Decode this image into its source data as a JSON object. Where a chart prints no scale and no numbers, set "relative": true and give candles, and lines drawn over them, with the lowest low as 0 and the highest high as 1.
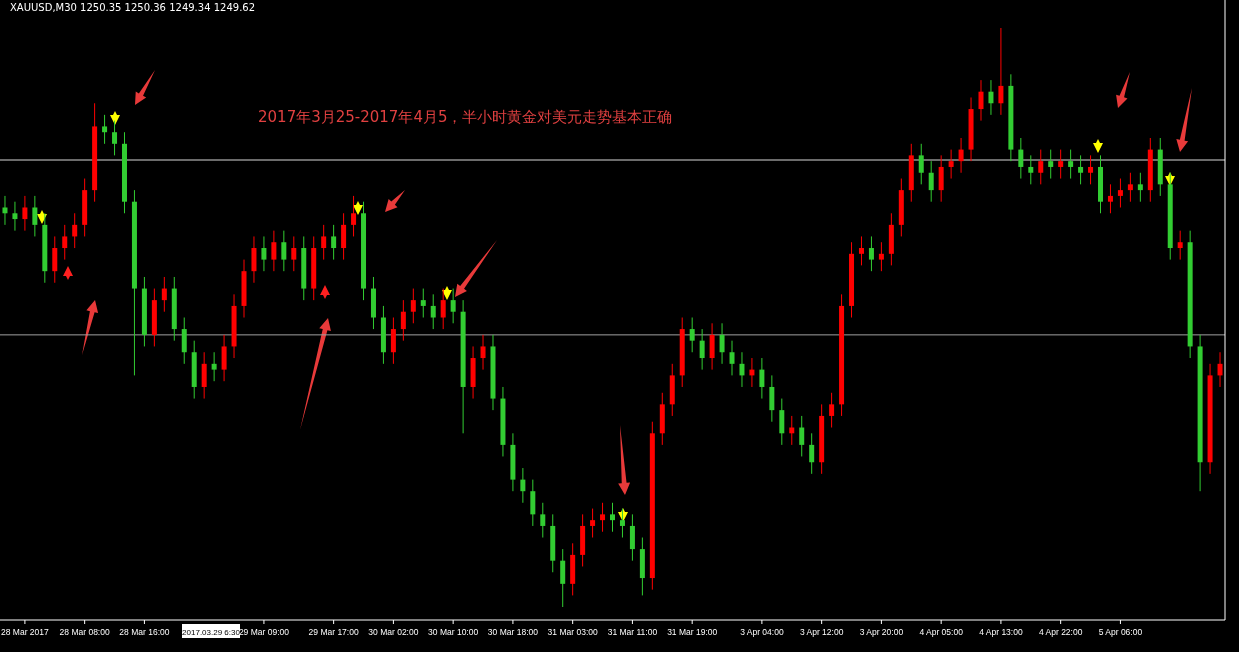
{
  "chart_data": {
    "type": "candlestick",
    "relative": true,
    "title": "2017年3月25-2017年4月5，半小时黄金对美元走势基本正确",
    "annotations": [
      "XAUUSD,M30  1250.35 1250.36 1249.34 1249.62",
      "2017.03.29 6:30"
    ],
    "categories": [
      null,
      null,
      "28 Mar 2017",
      null,
      null,
      null,
      null,
      null,
      "28 Mar 08:00",
      null,
      null,
      null,
      null,
      null,
      "28 Mar 16:00",
      null,
      null,
      null,
      null,
      null,
      null,
      null,
      null,
      null,
      null,
      null,
      "29 Mar 09:00",
      null,
      null,
      null,
      null,
      null,
      null,
      "29 Mar 17:00",
      null,
      null,
      null,
      null,
      null,
      "30 Mar 02:00",
      null,
      null,
      null,
      null,
      null,
      "30 Mar 10:00",
      null,
      null,
      null,
      null,
      null,
      "30 Mar 18:00",
      null,
      null,
      null,
      null,
      null,
      "31 Mar 03:00",
      null,
      null,
      null,
      null,
      null,
      "31 Mar 11:00",
      null,
      null,
      null,
      null,
      null,
      "31 Mar 19:00",
      null,
      null,
      null,
      null,
      null,
      null,
      "3 Apr 04:00",
      null,
      null,
      null,
      null,
      null,
      "3 Apr 12:00",
      null,
      null,
      null,
      null,
      null,
      "3 Apr 20:00",
      null,
      null,
      null,
      null,
      null,
      "4 Apr 05:00",
      null,
      null,
      null,
      null,
      null,
      "4 Apr 13:00",
      null,
      null,
      null,
      null,
      null,
      "4 Apr 22:00",
      null,
      null,
      null,
      null,
      null,
      "5 Apr 06:00",
      null,
      null,
      null,
      null,
      null,
      null,
      null,
      null,
      null,
      null
    ],
    "ohlc": [
      [
        0.69,
        0.71,
        0.66,
        0.68
      ],
      [
        0.68,
        0.7,
        0.65,
        0.67
      ],
      [
        0.67,
        0.71,
        0.65,
        0.69
      ],
      [
        0.69,
        0.71,
        0.64,
        0.66
      ],
      [
        0.66,
        0.68,
        0.56,
        0.58
      ],
      [
        0.58,
        0.64,
        0.56,
        0.62
      ],
      [
        0.62,
        0.66,
        0.6,
        0.64
      ],
      [
        0.64,
        0.68,
        0.62,
        0.66
      ],
      [
        0.66,
        0.74,
        0.64,
        0.72
      ],
      [
        0.72,
        0.87,
        0.7,
        0.83
      ],
      [
        0.83,
        0.85,
        0.8,
        0.82
      ],
      [
        0.82,
        0.84,
        0.78,
        0.8
      ],
      [
        0.8,
        0.82,
        0.68,
        0.7
      ],
      [
        0.7,
        0.72,
        0.4,
        0.55
      ],
      [
        0.55,
        0.57,
        0.45,
        0.47
      ],
      [
        0.47,
        0.55,
        0.45,
        0.53
      ],
      [
        0.53,
        0.57,
        0.51,
        0.55
      ],
      [
        0.55,
        0.57,
        0.46,
        0.48
      ],
      [
        0.48,
        0.5,
        0.42,
        0.44
      ],
      [
        0.44,
        0.46,
        0.36,
        0.38
      ],
      [
        0.38,
        0.44,
        0.36,
        0.42
      ],
      [
        0.42,
        0.44,
        0.39,
        0.41
      ],
      [
        0.41,
        0.47,
        0.39,
        0.45
      ],
      [
        0.45,
        0.54,
        0.43,
        0.52
      ],
      [
        0.52,
        0.6,
        0.5,
        0.58
      ],
      [
        0.58,
        0.64,
        0.56,
        0.62
      ],
      [
        0.62,
        0.64,
        0.58,
        0.6
      ],
      [
        0.6,
        0.65,
        0.58,
        0.63
      ],
      [
        0.63,
        0.65,
        0.58,
        0.6
      ],
      [
        0.6,
        0.64,
        0.58,
        0.62
      ],
      [
        0.62,
        0.64,
        0.53,
        0.55
      ],
      [
        0.55,
        0.64,
        0.53,
        0.62
      ],
      [
        0.62,
        0.66,
        0.6,
        0.64
      ],
      [
        0.64,
        0.66,
        0.6,
        0.62
      ],
      [
        0.62,
        0.68,
        0.6,
        0.66
      ],
      [
        0.66,
        0.71,
        0.64,
        0.68
      ],
      [
        0.68,
        0.7,
        0.53,
        0.55
      ],
      [
        0.55,
        0.57,
        0.48,
        0.5
      ],
      [
        0.5,
        0.52,
        0.42,
        0.44
      ],
      [
        0.44,
        0.5,
        0.42,
        0.48
      ],
      [
        0.48,
        0.53,
        0.46,
        0.51
      ],
      [
        0.51,
        0.55,
        0.49,
        0.53
      ],
      [
        0.53,
        0.55,
        0.5,
        0.52
      ],
      [
        0.52,
        0.54,
        0.48,
        0.5
      ],
      [
        0.5,
        0.55,
        0.48,
        0.53
      ],
      [
        0.53,
        0.55,
        0.49,
        0.51
      ],
      [
        0.51,
        0.53,
        0.3,
        0.38
      ],
      [
        0.38,
        0.45,
        0.36,
        0.43
      ],
      [
        0.43,
        0.47,
        0.41,
        0.45
      ],
      [
        0.45,
        0.47,
        0.34,
        0.36
      ],
      [
        0.36,
        0.38,
        0.26,
        0.28
      ],
      [
        0.28,
        0.3,
        0.2,
        0.22
      ],
      [
        0.22,
        0.24,
        0.18,
        0.2
      ],
      [
        0.2,
        0.22,
        0.14,
        0.16
      ],
      [
        0.16,
        0.18,
        0.12,
        0.14
      ],
      [
        0.14,
        0.16,
        0.06,
        0.08
      ],
      [
        0.08,
        0.1,
        0,
        0.04
      ],
      [
        0.04,
        0.11,
        0.02,
        0.09
      ],
      [
        0.09,
        0.16,
        0.07,
        0.14
      ],
      [
        0.14,
        0.17,
        0.12,
        0.15
      ],
      [
        0.15,
        0.18,
        0.13,
        0.16
      ],
      [
        0.16,
        0.18,
        0.13,
        0.15
      ],
      [
        0.15,
        0.17,
        0.12,
        0.14
      ],
      [
        0.14,
        0.16,
        0.08,
        0.1
      ],
      [
        0.1,
        0.12,
        0.02,
        0.05
      ],
      [
        0.05,
        0.32,
        0.03,
        0.3
      ],
      [
        0.3,
        0.37,
        0.28,
        0.35
      ],
      [
        0.35,
        0.42,
        0.33,
        0.4
      ],
      [
        0.4,
        0.5,
        0.38,
        0.48
      ],
      [
        0.48,
        0.5,
        0.44,
        0.46
      ],
      [
        0.46,
        0.48,
        0.41,
        0.43
      ],
      [
        0.43,
        0.49,
        0.41,
        0.47
      ],
      [
        0.47,
        0.49,
        0.42,
        0.44
      ],
      [
        0.44,
        0.46,
        0.4,
        0.42
      ],
      [
        0.42,
        0.44,
        0.38,
        0.4
      ],
      [
        0.4,
        0.43,
        0.38,
        0.41
      ],
      [
        0.41,
        0.43,
        0.36,
        0.38
      ],
      [
        0.38,
        0.4,
        0.32,
        0.34
      ],
      [
        0.34,
        0.36,
        0.28,
        0.3
      ],
      [
        0.3,
        0.33,
        0.28,
        0.31
      ],
      [
        0.31,
        0.33,
        0.26,
        0.28
      ],
      [
        0.28,
        0.3,
        0.23,
        0.25
      ],
      [
        0.25,
        0.35,
        0.23,
        0.33
      ],
      [
        0.33,
        0.37,
        0.31,
        0.35
      ],
      [
        0.35,
        0.54,
        0.33,
        0.52
      ],
      [
        0.52,
        0.63,
        0.5,
        0.61
      ],
      [
        0.61,
        0.64,
        0.59,
        0.62
      ],
      [
        0.62,
        0.64,
        0.58,
        0.6
      ],
      [
        0.6,
        0.63,
        0.58,
        0.61
      ],
      [
        0.61,
        0.68,
        0.59,
        0.66
      ],
      [
        0.66,
        0.74,
        0.64,
        0.72
      ],
      [
        0.72,
        0.8,
        0.7,
        0.78
      ],
      [
        0.78,
        0.8,
        0.73,
        0.75
      ],
      [
        0.75,
        0.77,
        0.7,
        0.72
      ],
      [
        0.72,
        0.78,
        0.7,
        0.76
      ],
      [
        0.76,
        0.79,
        0.74,
        0.77
      ],
      [
        0.77,
        0.81,
        0.75,
        0.79
      ],
      [
        0.79,
        0.88,
        0.77,
        0.86
      ],
      [
        0.86,
        0.91,
        0.84,
        0.89
      ],
      [
        0.89,
        0.91,
        0.85,
        0.87
      ],
      [
        0.87,
        1,
        0.85,
        0.9
      ],
      [
        0.9,
        0.92,
        0.77,
        0.79
      ],
      [
        0.79,
        0.81,
        0.74,
        0.76
      ],
      [
        0.76,
        0.78,
        0.73,
        0.75
      ],
      [
        0.75,
        0.79,
        0.73,
        0.77
      ],
      [
        0.77,
        0.79,
        0.74,
        0.76
      ],
      [
        0.76,
        0.79,
        0.74,
        0.77
      ],
      [
        0.77,
        0.79,
        0.74,
        0.76
      ],
      [
        0.76,
        0.78,
        0.73,
        0.75
      ],
      [
        0.75,
        0.78,
        0.73,
        0.76
      ],
      [
        0.76,
        0.78,
        0.68,
        0.7
      ],
      [
        0.7,
        0.73,
        0.68,
        0.71
      ],
      [
        0.71,
        0.74,
        0.69,
        0.72
      ],
      [
        0.72,
        0.75,
        0.7,
        0.73
      ],
      [
        0.73,
        0.75,
        0.7,
        0.72
      ],
      [
        0.72,
        0.81,
        0.7,
        0.79
      ],
      [
        0.79,
        0.81,
        0.71,
        0.73
      ],
      [
        0.73,
        0.75,
        0.6,
        0.62
      ],
      [
        0.62,
        0.65,
        0.6,
        0.63
      ],
      [
        0.63,
        0.65,
        0.43,
        0.45
      ],
      [
        0.45,
        0.47,
        0.2,
        0.25
      ],
      [
        0.25,
        0.42,
        0.23,
        0.4
      ],
      [
        0.4,
        0.44,
        0.38,
        0.42
      ]
    ],
    "colors": [
      "#32cd32",
      "#32cd32",
      "#ff0000",
      "#32cd32",
      "#32cd32",
      "#ff0000",
      "#ff0000",
      "#ff0000",
      "#ff0000",
      "#ff0000",
      "#32cd32",
      "#32cd32",
      "#32cd32",
      "#32cd32",
      "#32cd32",
      "#ff0000",
      "#ff0000",
      "#32cd32",
      "#32cd32",
      "#32cd32",
      "#ff0000",
      "#32cd32",
      "#ff0000",
      "#ff0000",
      "#ff0000",
      "#ff0000",
      "#32cd32",
      "#ff0000",
      "#32cd32",
      "#ff0000",
      "#32cd32",
      "#ff0000",
      "#ff0000",
      "#32cd32",
      "#ff0000",
      "#ff0000",
      "#32cd32",
      "#32cd32",
      "#32cd32",
      "#ff0000",
      "#ff0000",
      "#ff0000",
      "#32cd32",
      "#32cd32",
      "#ff0000",
      "#32cd32",
      "#32cd32",
      "#ff0000",
      "#ff0000",
      "#32cd32",
      "#32cd32",
      "#32cd32",
      "#32cd32",
      "#32cd32",
      "#32cd32",
      "#32cd32",
      "#32cd32",
      "#ff0000",
      "#ff0000",
      "#ff0000",
      "#ff0000",
      "#32cd32",
      "#32cd32",
      "#32cd32",
      "#32cd32",
      "#ff0000",
      "#ff0000",
      "#ff0000",
      "#ff0000",
      "#32cd32",
      "#32cd32",
      "#ff0000",
      "#32cd32",
      "#32cd32",
      "#32cd32",
      "#ff0000",
      "#32cd32",
      "#32cd32",
      "#32cd32",
      "#ff0000",
      "#32cd32",
      "#32cd32",
      "#ff0000",
      "#ff0000",
      "#ff0000",
      "#ff0000",
      "#ff0000",
      "#32cd32",
      "#ff0000",
      "#ff0000",
      "#ff0000",
      "#ff0000",
      "#32cd32",
      "#32cd32",
      "#ff0000",
      "#ff0000",
      "#ff0000",
      "#ff0000",
      "#ff0000",
      "#32cd32",
      "#ff0000",
      "#32cd32",
      "#32cd32",
      "#32cd32",
      "#ff0000",
      "#32cd32",
      "#ff0000",
      "#32cd32",
      "#32cd32",
      "#ff0000",
      "#32cd32",
      "#ff0000",
      "#ff0000",
      "#ff0000",
      "#32cd32",
      "#ff0000",
      "#32cd32",
      "#32cd32",
      "#ff0000",
      "#32cd32",
      "#32cd32",
      "#ff0000",
      "#ff0000"
    ],
    "ref_lines": [
      {
        "axis": "y",
        "value": 0.772,
        "color": "#d8d8d8"
      },
      {
        "axis": "y",
        "value": 0.47,
        "color": "#a0a0a0"
      }
    ]
  }
}
